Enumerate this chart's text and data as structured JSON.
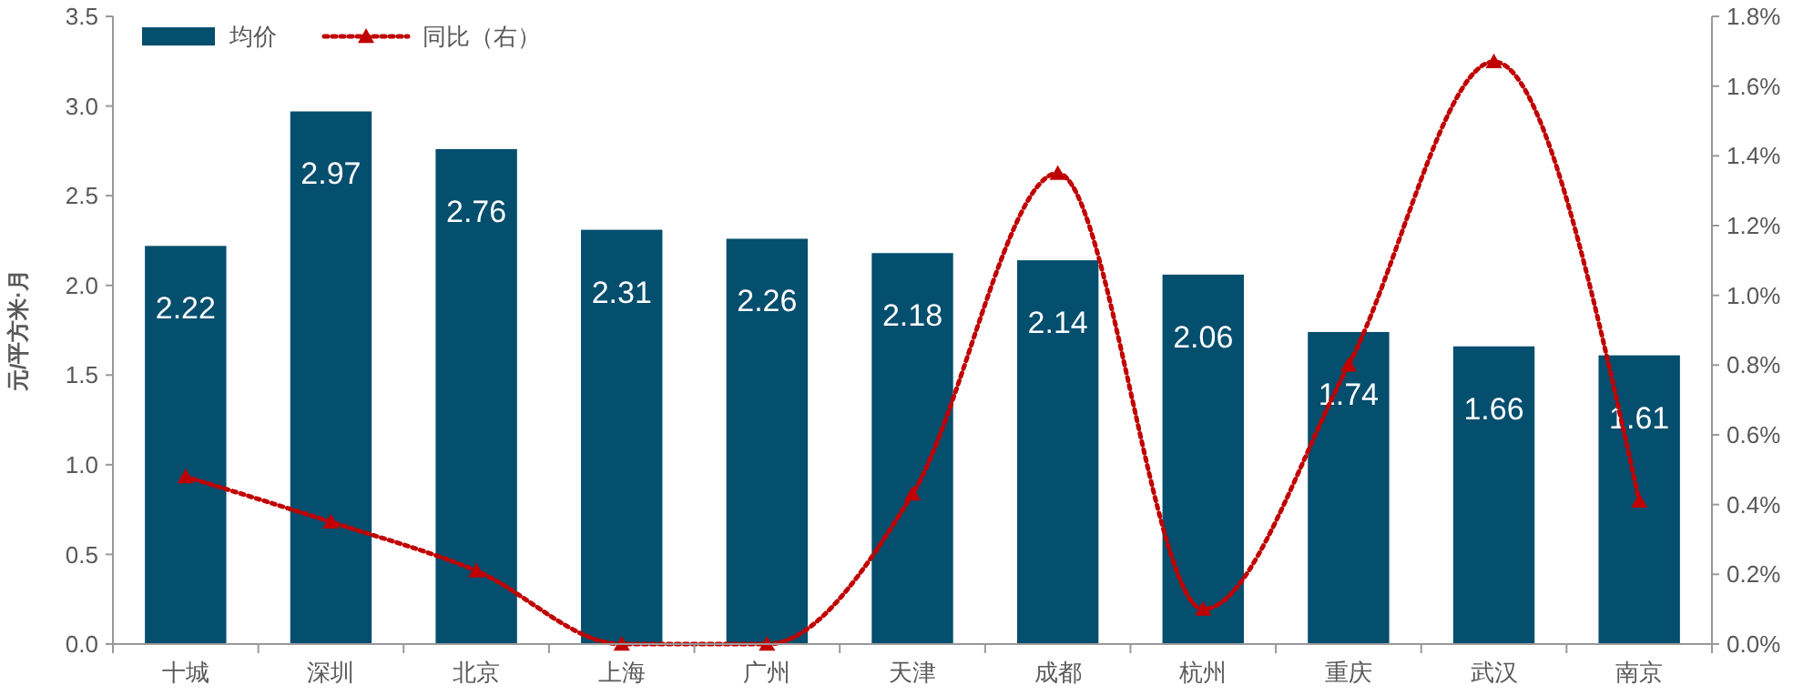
{
  "chart_data": {
    "type": "bar",
    "ylabel": "元/平方米·月",
    "categories": [
      "十城",
      "深圳",
      "北京",
      "上海",
      "广州",
      "天津",
      "成都",
      "杭州",
      "重庆",
      "武汉",
      "南京"
    ],
    "series": [
      {
        "name": "均价",
        "color": "#044e6e",
        "values": [
          2.22,
          2.97,
          2.76,
          2.31,
          2.26,
          2.18,
          2.14,
          2.06,
          1.74,
          1.66,
          1.61
        ],
        "value_labels": [
          "2.22",
          "2.97",
          "2.76",
          "2.31",
          "2.26",
          "2.18",
          "2.14",
          "2.06",
          "1.74",
          "1.66",
          "1.61"
        ]
      },
      {
        "name": "同比（右）",
        "type": "line",
        "axis": "y2",
        "color": "#c00000",
        "marker": "triangle",
        "line_style": "dotted",
        "values": [
          0.48,
          0.35,
          0.21,
          0.0,
          0.0,
          0.43,
          1.35,
          0.1,
          0.8,
          1.67,
          0.41
        ]
      }
    ],
    "legend": "top left",
    "grid": false,
    "ylim": [
      0,
      3.5
    ],
    "yticks": [
      {
        "value": 0,
        "label": "0.0"
      },
      {
        "value": 0.5,
        "label": "0.5"
      },
      {
        "value": 1,
        "label": "1.0"
      },
      {
        "value": 1.5,
        "label": "1.5"
      },
      {
        "value": 2,
        "label": "2.0"
      },
      {
        "value": 2.5,
        "label": "2.5"
      },
      {
        "value": 3,
        "label": "3.0"
      },
      {
        "value": 3.5,
        "label": "3.5"
      }
    ],
    "y2lim": [
      0,
      1.8
    ],
    "y2ticks": [
      {
        "value": 0,
        "label": "0.0%"
      },
      {
        "value": 0.2,
        "label": "0.2%"
      },
      {
        "value": 0.4,
        "label": "0.4%"
      },
      {
        "value": 0.6,
        "label": "0.6%"
      },
      {
        "value": 0.8,
        "label": "0.8%"
      },
      {
        "value": 1.0,
        "label": "1.0%"
      },
      {
        "value": 1.2,
        "label": "1.2%"
      },
      {
        "value": 1.4,
        "label": "1.4%"
      },
      {
        "value": 1.6,
        "label": "1.6%"
      },
      {
        "value": 1.8,
        "label": "1.8%"
      }
    ]
  }
}
